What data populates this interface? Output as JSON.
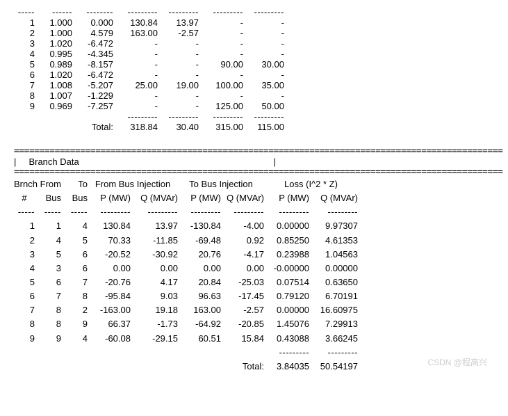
{
  "busTable": {
    "rows": [
      {
        "n": "1",
        "v": "1.000",
        "a": "0.000",
        "p": "130.84",
        "q": "13.97",
        "pd": "-",
        "qd": "-"
      },
      {
        "n": "2",
        "v": "1.000",
        "a": "4.579",
        "p": "163.00",
        "q": "-2.57",
        "pd": "-",
        "qd": "-"
      },
      {
        "n": "3",
        "v": "1.020",
        "a": "-6.472",
        "p": "-",
        "q": "-",
        "pd": "-",
        "qd": "-"
      },
      {
        "n": "4",
        "v": "0.995",
        "a": "-4.345",
        "p": "-",
        "q": "-",
        "pd": "-",
        "qd": "-"
      },
      {
        "n": "5",
        "v": "0.989",
        "a": "-8.157",
        "p": "-",
        "q": "-",
        "pd": "90.00",
        "qd": "30.00"
      },
      {
        "n": "6",
        "v": "1.020",
        "a": "-6.472",
        "p": "-",
        "q": "-",
        "pd": "-",
        "qd": "-"
      },
      {
        "n": "7",
        "v": "1.008",
        "a": "-5.207",
        "p": "25.00",
        "q": "19.00",
        "pd": "100.00",
        "qd": "35.00"
      },
      {
        "n": "8",
        "v": "1.007",
        "a": "-1.229",
        "p": "-",
        "q": "-",
        "pd": "-",
        "qd": "-"
      },
      {
        "n": "9",
        "v": "0.969",
        "a": "-7.257",
        "p": "-",
        "q": "-",
        "pd": "125.00",
        "qd": "50.00"
      }
    ],
    "totalLabel": "Total:",
    "totals": {
      "p": "318.84",
      "q": "30.40",
      "pd": "315.00",
      "qd": "115.00"
    }
  },
  "branchSection": {
    "title": "Branch Data",
    "header1a": "Brnch",
    "header1b": "From",
    "header1c": "To",
    "header1d": "From Bus Injection",
    "header1e": "To Bus Injection",
    "header1f": "Loss (I^2 * Z)",
    "h_num": "#",
    "h_fbus": "Bus",
    "h_tbus": "Bus",
    "h_p1": "P (MW)",
    "h_q1": "Q (MVAr)",
    "h_p2": "P (MW)",
    "h_q2": "Q (MVAr)",
    "h_p3": "P (MW)",
    "h_q3": "Q (MVAr)",
    "rows": [
      {
        "n": "1",
        "f": "1",
        "t": "4",
        "p1": "130.84",
        "q1": "13.97",
        "p2": "-130.84",
        "q2": "-4.00",
        "lp": "0.00000",
        "lq": "9.97307"
      },
      {
        "n": "2",
        "f": "4",
        "t": "5",
        "p1": "70.33",
        "q1": "-11.85",
        "p2": "-69.48",
        "q2": "0.92",
        "lp": "0.85250",
        "lq": "4.61353"
      },
      {
        "n": "3",
        "f": "5",
        "t": "6",
        "p1": "-20.52",
        "q1": "-30.92",
        "p2": "20.76",
        "q2": "-4.17",
        "lp": "0.23988",
        "lq": "1.04563"
      },
      {
        "n": "4",
        "f": "3",
        "t": "6",
        "p1": "0.00",
        "q1": "0.00",
        "p2": "0.00",
        "q2": "0.00",
        "lp": "-0.00000",
        "lq": "0.00000"
      },
      {
        "n": "5",
        "f": "6",
        "t": "7",
        "p1": "-20.76",
        "q1": "4.17",
        "p2": "20.84",
        "q2": "-25.03",
        "lp": "0.07514",
        "lq": "0.63650"
      },
      {
        "n": "6",
        "f": "7",
        "t": "8",
        "p1": "-95.84",
        "q1": "9.03",
        "p2": "96.63",
        "q2": "-17.45",
        "lp": "0.79120",
        "lq": "6.70191"
      },
      {
        "n": "7",
        "f": "8",
        "t": "2",
        "p1": "-163.00",
        "q1": "19.18",
        "p2": "163.00",
        "q2": "-2.57",
        "lp": "0.00000",
        "lq": "16.60975"
      },
      {
        "n": "8",
        "f": "8",
        "t": "9",
        "p1": "66.37",
        "q1": "-1.73",
        "p2": "-64.92",
        "q2": "-20.85",
        "lp": "1.45076",
        "lq": "7.29913"
      },
      {
        "n": "9",
        "f": "9",
        "t": "4",
        "p1": "-60.08",
        "q1": "-29.15",
        "p2": "60.51",
        "q2": "15.84",
        "lp": "0.43088",
        "lq": "3.66245"
      }
    ],
    "totalLabel": "Total:",
    "totals": {
      "lp": "3.84035",
      "lq": "50.54197"
    }
  },
  "watermark": "CSDN @程高兴"
}
